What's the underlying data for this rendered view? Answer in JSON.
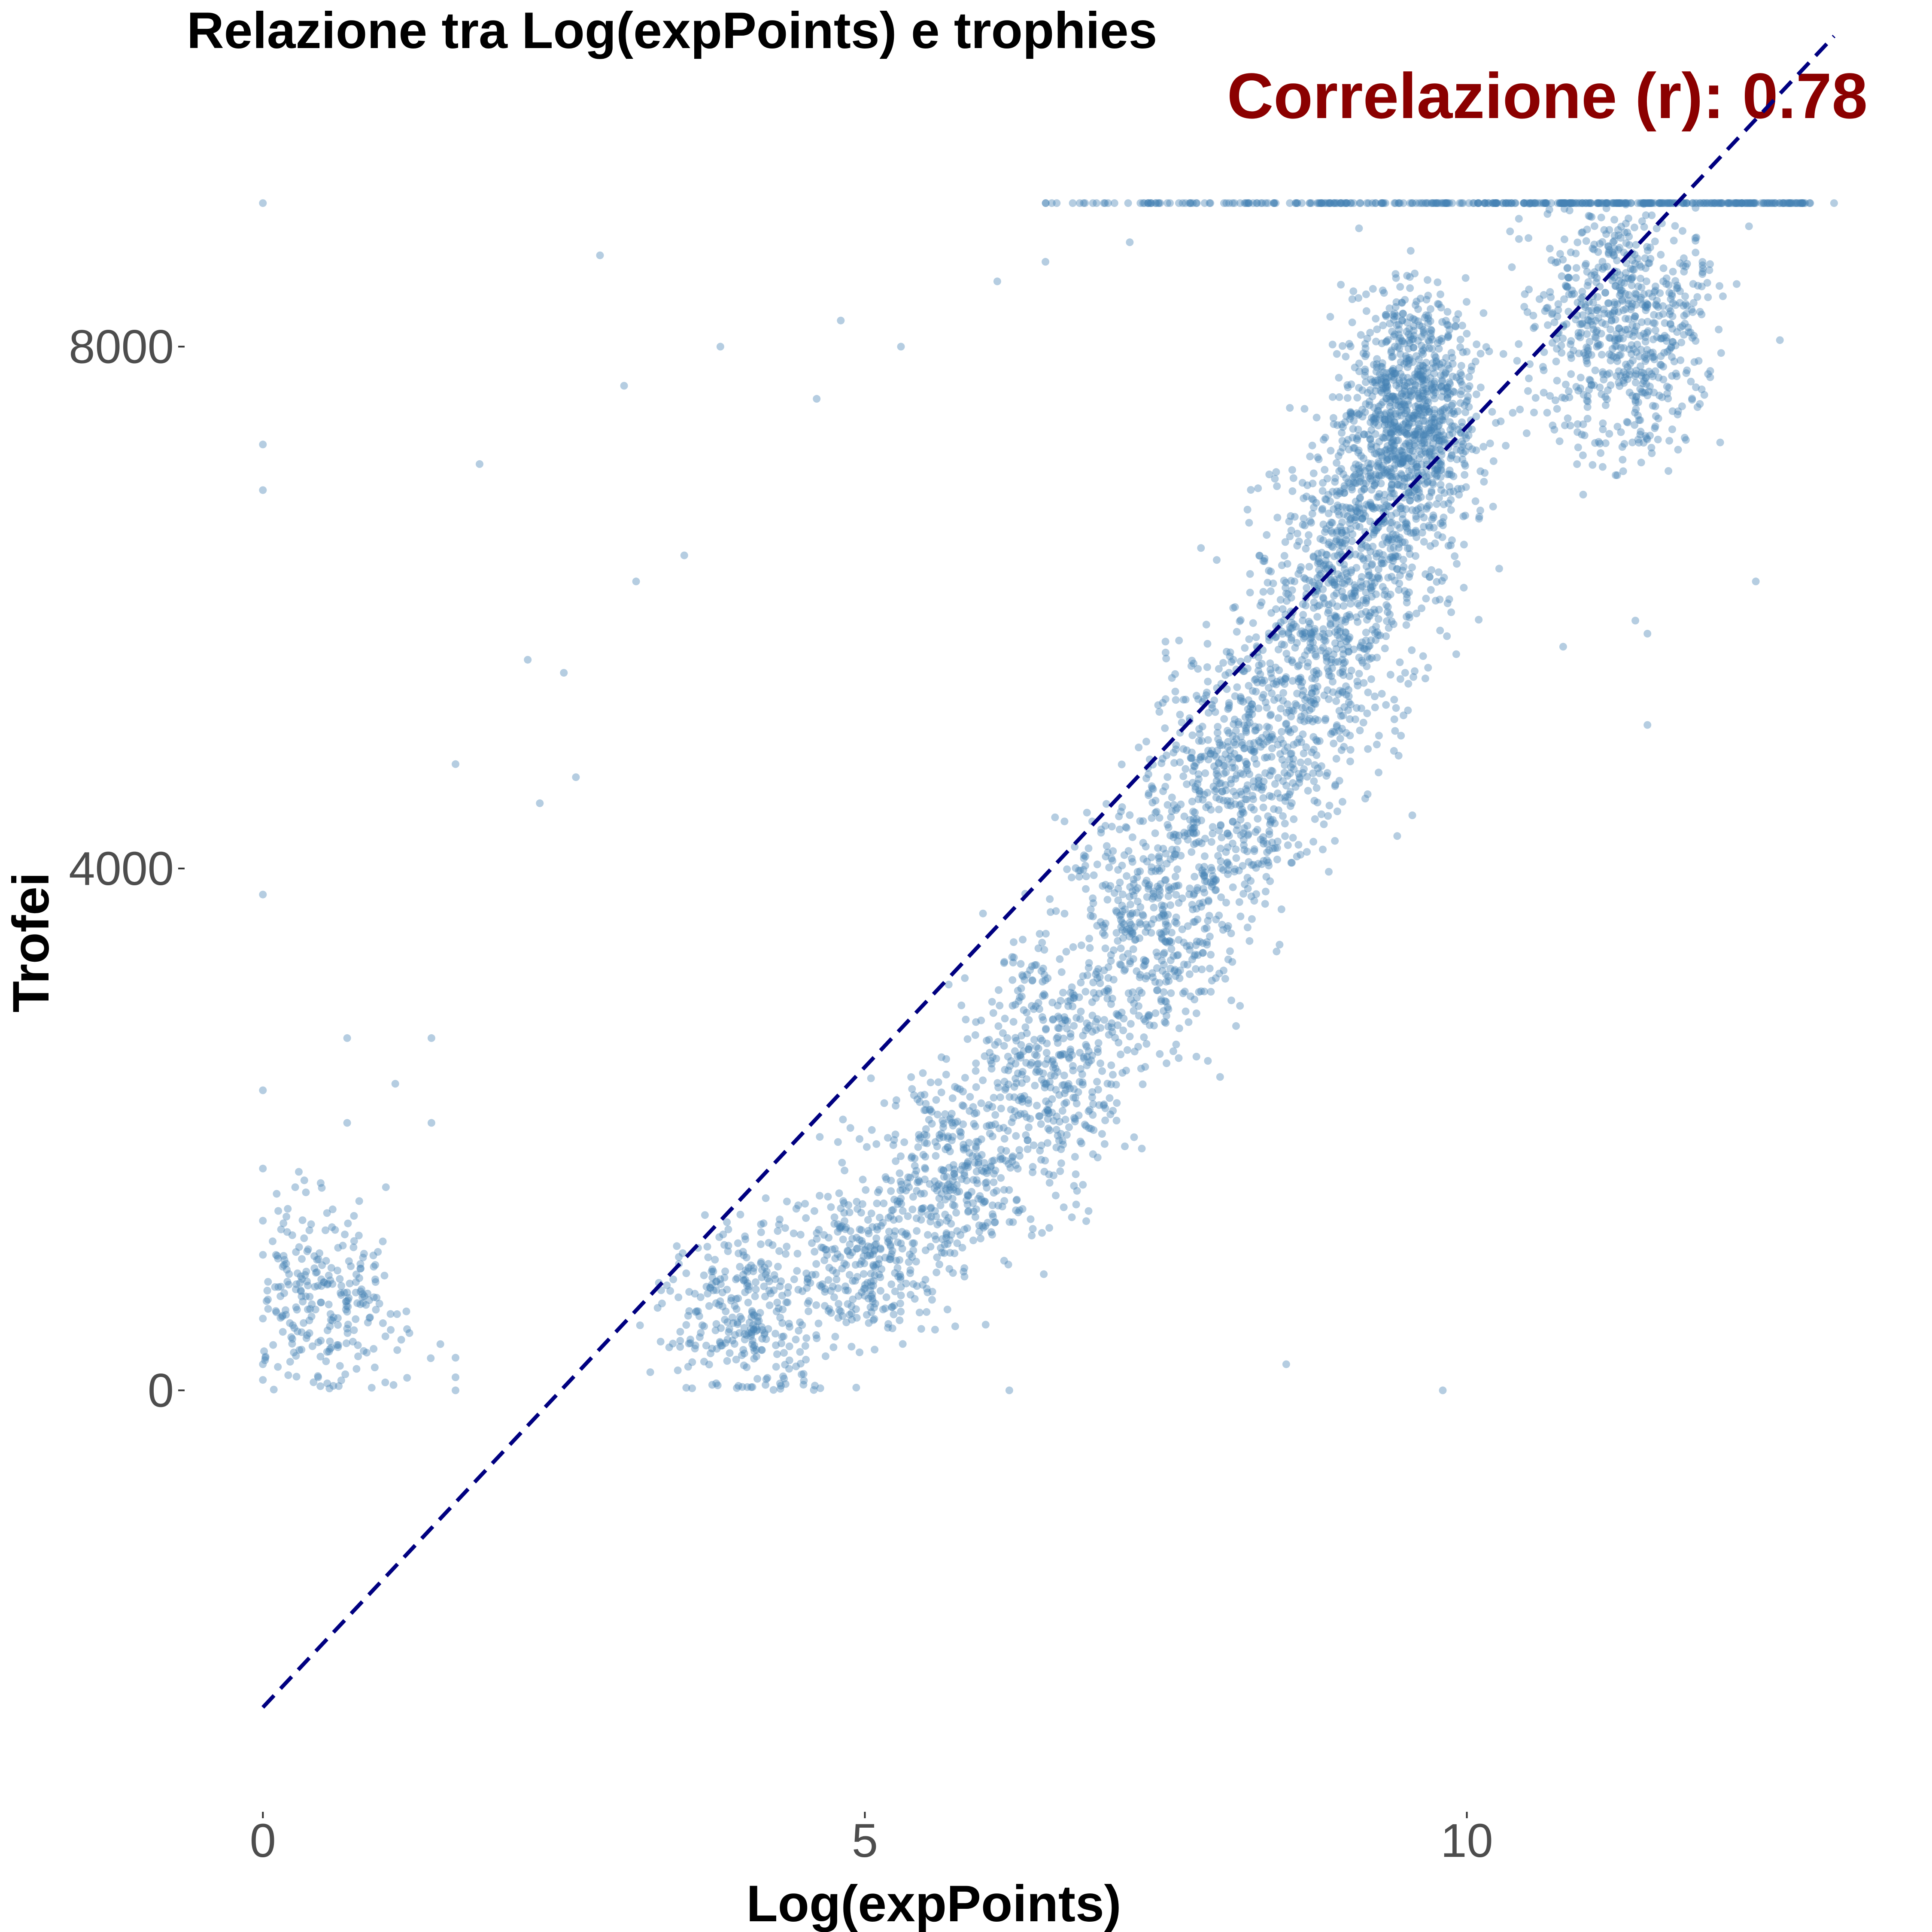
{
  "chart_data": {
    "type": "scatter",
    "title": "Relazione tra Log(expPoints) e trophies",
    "annotation": "Correlazione (r): 0.78",
    "xlabel": "Log(expPoints)",
    "ylabel": "Trofei",
    "xlim": [
      -0.65,
      13.4
    ],
    "ylim": [
      -3000,
      9900
    ],
    "x_ticks": [
      0,
      5,
      10
    ],
    "y_ticks": [
      0,
      4000,
      8000
    ],
    "x_tick_labels": [
      "0",
      "5",
      "10"
    ],
    "y_tick_labels": [
      "0",
      "4000",
      "8000"
    ],
    "grid": false,
    "legend": "none",
    "point_color": "#4682B4",
    "point_alpha": 0.4,
    "trend_line": {
      "style": "dashed",
      "color": "#000080",
      "points": [
        {
          "x": 0,
          "y": -2430
        },
        {
          "x": 13.05,
          "y": 10380
        }
      ]
    },
    "annotation_color": "#8B0000",
    "cap_value": 9100,
    "clusters": [
      {
        "x": 0.4,
        "y": 700,
        "sx": 0.55,
        "sy": 500
      },
      {
        "x": 4.0,
        "y": 600,
        "sx": 0.45,
        "sy": 450
      },
      {
        "x": 5.0,
        "y": 1000,
        "sx": 0.45,
        "sy": 500
      },
      {
        "x": 5.8,
        "y": 1700,
        "sx": 0.45,
        "sy": 550
      },
      {
        "x": 6.6,
        "y": 2500,
        "sx": 0.45,
        "sy": 650
      },
      {
        "x": 7.4,
        "y": 3600,
        "sx": 0.45,
        "sy": 700
      },
      {
        "x": 8.1,
        "y": 4700,
        "sx": 0.45,
        "sy": 800
      },
      {
        "x": 8.8,
        "y": 5800,
        "sx": 0.45,
        "sy": 900
      },
      {
        "x": 9.3,
        "y": 6900,
        "sx": 0.45,
        "sy": 900
      },
      {
        "x": 9.6,
        "y": 7600,
        "sx": 0.35,
        "sy": 600
      },
      {
        "x": 11.3,
        "y": 8200,
        "sx": 0.55,
        "sy": 700
      }
    ],
    "points": [
      {
        "x": 0,
        "y": 9100
      },
      {
        "x": 0,
        "y": 7250
      },
      {
        "x": 0,
        "y": 6900
      },
      {
        "x": 0,
        "y": 3800
      },
      {
        "x": 0,
        "y": 2300
      },
      {
        "x": 0,
        "y": 1700
      },
      {
        "x": 0,
        "y": 1300
      },
      {
        "x": 0,
        "y": 550
      },
      {
        "x": 0,
        "y": 200
      },
      {
        "x": 0,
        "y": 80
      },
      {
        "x": 0.7,
        "y": 2700
      },
      {
        "x": 0.7,
        "y": 2050
      },
      {
        "x": 0.7,
        "y": 750
      },
      {
        "x": 1.1,
        "y": 2350
      },
      {
        "x": 1.4,
        "y": 2700
      },
      {
        "x": 1.4,
        "y": 2050
      },
      {
        "x": 1.6,
        "y": 4800
      },
      {
        "x": 1.6,
        "y": 250
      },
      {
        "x": 1.6,
        "y": 100
      },
      {
        "x": 1.6,
        "y": 0
      },
      {
        "x": 1.8,
        "y": 7100
      },
      {
        "x": 2.2,
        "y": 5600
      },
      {
        "x": 2.5,
        "y": 5500
      },
      {
        "x": 2.8,
        "y": 8700
      },
      {
        "x": 3.0,
        "y": 7700
      },
      {
        "x": 3.8,
        "y": 8000
      },
      {
        "x": 4.6,
        "y": 7600
      },
      {
        "x": 4.8,
        "y": 8200
      },
      {
        "x": 5.3,
        "y": 8000
      },
      {
        "x": 6.1,
        "y": 8500
      },
      {
        "x": 6.5,
        "y": 8650
      },
      {
        "x": 7.2,
        "y": 8800
      },
      {
        "x": 3.5,
        "y": 6400
      },
      {
        "x": 3.1,
        "y": 6200
      },
      {
        "x": 2.6,
        "y": 4700
      },
      {
        "x": 2.3,
        "y": 4500
      },
      {
        "x": 9.8,
        "y": 0
      },
      {
        "x": 6.2,
        "y": 0
      },
      {
        "x": 8.5,
        "y": 200
      },
      {
        "x": 13.05,
        "y": 9100
      },
      {
        "x": 12.6,
        "y": 8050
      },
      {
        "x": 12.6,
        "y": 9100
      },
      {
        "x": 11.5,
        "y": 5100
      },
      {
        "x": 11.5,
        "y": 5800
      },
      {
        "x": 12.4,
        "y": 6200
      },
      {
        "x": 10.8,
        "y": 5700
      },
      {
        "x": 11.4,
        "y": 5900
      }
    ]
  }
}
